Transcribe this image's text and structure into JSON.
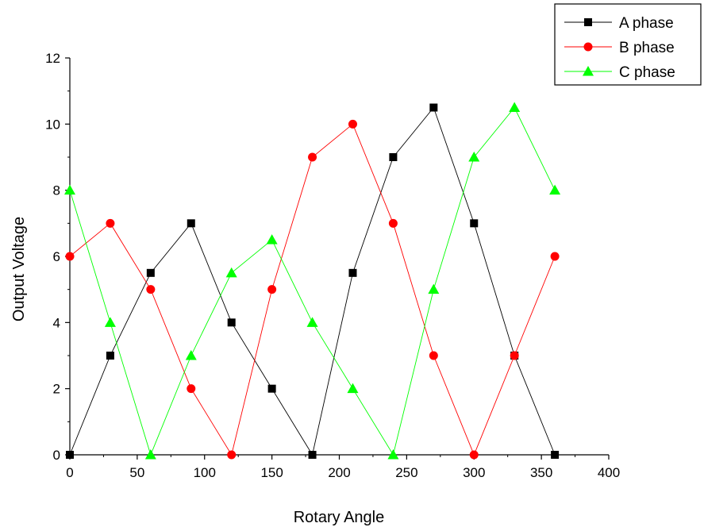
{
  "chart_data": {
    "type": "line",
    "xlabel": "Rotary Angle",
    "ylabel": "Output Voltage",
    "xlim": [
      0,
      400
    ],
    "ylim": [
      0,
      12
    ],
    "xticks": [
      "0",
      "50",
      "100",
      "150",
      "200",
      "250",
      "300",
      "350",
      "400"
    ],
    "yticks": [
      "0",
      "2",
      "4",
      "6",
      "8",
      "10",
      "12"
    ],
    "grid": false,
    "legend_position": "top-right",
    "x": [
      0,
      30,
      60,
      90,
      120,
      150,
      180,
      210,
      240,
      270,
      300,
      330,
      360
    ],
    "series": [
      {
        "name": "A phase",
        "color": "#000000",
        "marker": "square",
        "values": [
          0,
          3,
          5.5,
          7,
          4,
          2,
          0,
          5.5,
          9,
          10.5,
          7,
          3,
          0
        ]
      },
      {
        "name": "B phase",
        "color": "#ff0000",
        "marker": "circle",
        "values": [
          6,
          7,
          5,
          2,
          0,
          5,
          9,
          10,
          7,
          3,
          0,
          3,
          6
        ]
      },
      {
        "name": "C phase",
        "color": "#00ff00",
        "marker": "triangle",
        "values": [
          8,
          4,
          0,
          3,
          5.5,
          6.5,
          4,
          2,
          0,
          5,
          9,
          10.5,
          8
        ]
      }
    ]
  }
}
